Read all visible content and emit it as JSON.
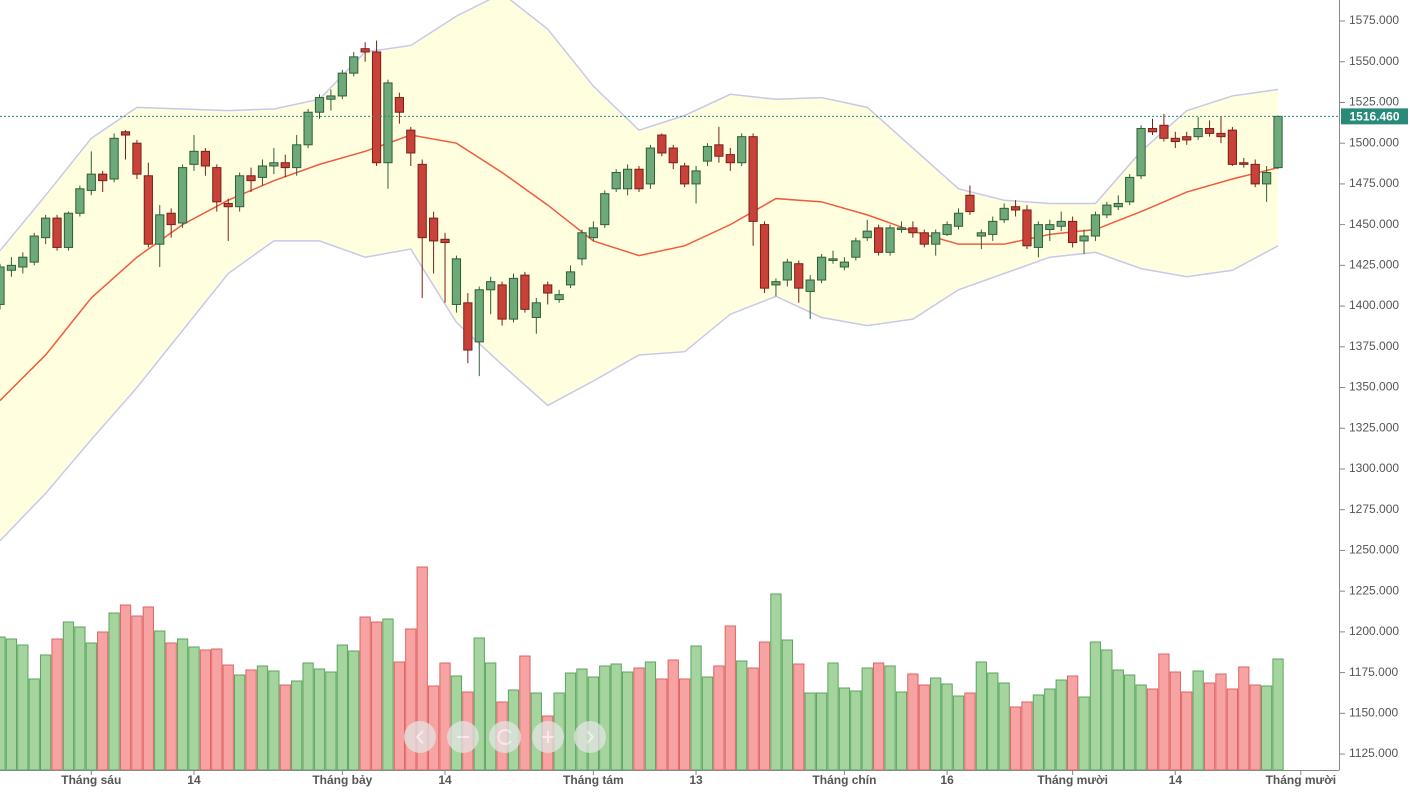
{
  "chart_data": {
    "type": "candlestick",
    "open": [
      1401,
      1422,
      1424,
      1427,
      1442,
      1454,
      1436,
      1457,
      1471,
      1481,
      1478,
      1507,
      1500,
      1480,
      1438,
      1457,
      1451,
      1487,
      1495,
      1485,
      1463,
      1461,
      1480,
      1479,
      1486,
      1488,
      1485,
      1499,
      1519,
      1527,
      1529,
      1543,
      1558,
      1556,
      1488,
      1528,
      1508,
      1487,
      1454,
      1441,
      1401,
      1402,
      1378,
      1410,
      1413,
      1392,
      1419,
      1393,
      1413,
      1404,
      1413,
      1429,
      1442,
      1450,
      1472,
      1472,
      1484,
      1475,
      1505,
      1497,
      1486,
      1475,
      1489,
      1499,
      1493,
      1488,
      1504,
      1450,
      1413,
      1416,
      1426,
      1409,
      1416,
      1428,
      1424,
      1430,
      1442,
      1448,
      1433,
      1447,
      1448,
      1445,
      1438,
      1444,
      1449,
      1468,
      1443,
      1444,
      1453,
      1461,
      1459,
      1436,
      1447,
      1449,
      1452,
      1440,
      1443,
      1456,
      1461,
      1464,
      1480,
      1509,
      1511,
      1503,
      1504,
      1504,
      1509,
      1506,
      1508,
      1488,
      1487,
      1475,
      1485
    ],
    "high": [
      1426,
      1430,
      1433,
      1445,
      1456,
      1456,
      1458,
      1474,
      1495,
      1483,
      1506,
      1508,
      1502,
      1488,
      1462,
      1460,
      1487,
      1505,
      1497,
      1487,
      1466,
      1482,
      1485,
      1490,
      1497,
      1493,
      1505,
      1521,
      1530,
      1533,
      1545,
      1556,
      1562,
      1563,
      1539,
      1531,
      1510,
      1490,
      1458,
      1445,
      1431,
      1408,
      1412,
      1418,
      1415,
      1420,
      1421,
      1405,
      1415,
      1410,
      1425,
      1447,
      1452,
      1471,
      1484,
      1487,
      1486,
      1499,
      1506,
      1499,
      1488,
      1486,
      1500,
      1510,
      1497,
      1506,
      1506,
      1452,
      1417,
      1429,
      1428,
      1419,
      1432,
      1434,
      1430,
      1442,
      1453,
      1450,
      1450,
      1452,
      1452,
      1447,
      1447,
      1452,
      1460,
      1474,
      1447,
      1455,
      1463,
      1465,
      1462,
      1452,
      1453,
      1458,
      1455,
      1447,
      1458,
      1464,
      1468,
      1481,
      1511,
      1515,
      1518,
      1507,
      1507,
      1516,
      1514,
      1516,
      1510,
      1491,
      1490,
      1486,
      1517
    ],
    "low": [
      1398,
      1418,
      1420,
      1425,
      1438,
      1434,
      1434,
      1455,
      1468,
      1470,
      1476,
      1490,
      1478,
      1436,
      1424,
      1442,
      1448,
      1483,
      1480,
      1458,
      1440,
      1458,
      1470,
      1474,
      1481,
      1479,
      1480,
      1497,
      1515,
      1520,
      1527,
      1541,
      1550,
      1486,
      1472,
      1512,
      1486,
      1405,
      1420,
      1402,
      1396,
      1365,
      1357,
      1395,
      1388,
      1390,
      1396,
      1383,
      1401,
      1402,
      1411,
      1425,
      1440,
      1448,
      1470,
      1468,
      1470,
      1472,
      1492,
      1484,
      1473,
      1463,
      1486,
      1488,
      1483,
      1486,
      1437,
      1408,
      1406,
      1412,
      1402,
      1392,
      1414,
      1426,
      1422,
      1428,
      1440,
      1431,
      1431,
      1445,
      1442,
      1436,
      1431,
      1443,
      1447,
      1456,
      1435,
      1440,
      1451,
      1455,
      1435,
      1430,
      1440,
      1446,
      1436,
      1432,
      1440,
      1454,
      1459,
      1462,
      1478,
      1505,
      1501,
      1497,
      1499,
      1502,
      1504,
      1500,
      1486,
      1485,
      1473,
      1464,
      1484
    ],
    "close": [
      1424,
      1425,
      1430,
      1443,
      1454,
      1436,
      1457,
      1472,
      1481,
      1477,
      1503,
      1505,
      1481,
      1438,
      1456,
      1450,
      1485,
      1495,
      1486,
      1464,
      1461,
      1480,
      1477,
      1486,
      1488,
      1485,
      1499,
      1519,
      1528,
      1529,
      1543,
      1553,
      1556,
      1488,
      1537,
      1519,
      1494,
      1442,
      1440,
      1439,
      1429,
      1373,
      1410,
      1415,
      1392,
      1417,
      1398,
      1402,
      1408,
      1407,
      1421,
      1445,
      1448,
      1469,
      1482,
      1484,
      1472,
      1497,
      1494,
      1488,
      1475,
      1483,
      1498,
      1492,
      1488,
      1504,
      1452,
      1411,
      1415,
      1427,
      1411,
      1416,
      1430,
      1429,
      1427,
      1440,
      1446,
      1433,
      1448,
      1448,
      1445,
      1438,
      1445,
      1450,
      1457,
      1458,
      1445,
      1452,
      1460,
      1459,
      1437,
      1450,
      1450,
      1452,
      1439,
      1443,
      1456,
      1462,
      1463,
      1479,
      1509,
      1507,
      1503,
      1501,
      1502,
      1509,
      1506,
      1504,
      1487,
      1487,
      1475,
      1482,
      1516.46
    ],
    "volume": [
      133,
      131,
      125,
      91,
      115,
      131,
      148,
      143,
      127,
      138,
      157,
      165,
      154,
      163,
      139,
      127,
      131,
      123,
      120,
      121,
      105,
      95,
      100,
      104,
      99,
      85,
      89,
      107,
      101,
      98,
      125,
      119,
      153,
      148,
      151,
      108,
      141,
      203,
      84,
      107,
      94,
      78,
      132,
      107,
      68,
      80,
      114,
      77,
      54,
      77,
      97,
      101,
      93,
      104,
      106,
      98,
      102,
      108,
      91,
      110,
      91,
      124,
      93,
      104,
      144,
      109,
      102,
      128,
      176,
      130,
      106,
      77,
      77,
      107,
      82,
      79,
      102,
      107,
      104,
      78,
      96,
      85,
      92,
      86,
      74,
      77,
      108,
      97,
      87,
      63,
      68,
      75,
      81,
      90,
      94,
      73,
      128,
      120,
      100,
      95,
      85,
      81,
      116,
      98,
      78,
      99,
      87,
      96,
      81,
      103,
      85,
      84,
      111
    ],
    "volume_lim": [
      0,
      210
    ],
    "bands": {
      "x": [
        0,
        4,
        8,
        12,
        16,
        20,
        24,
        28,
        32,
        36,
        40,
        44,
        48,
        52,
        56,
        60,
        64,
        68,
        72,
        76,
        80,
        84,
        88,
        92,
        96,
        100,
        104,
        108,
        112
      ],
      "upper": [
        1434,
        1468,
        1503,
        1522,
        1521,
        1520,
        1521,
        1527,
        1556,
        1560,
        1578,
        1592,
        1570,
        1535,
        1508,
        1517,
        1530,
        1527,
        1528,
        1522,
        1497,
        1472,
        1465,
        1463,
        1463,
        1495,
        1520,
        1529,
        1533
      ],
      "middle": [
        1342,
        1370,
        1405,
        1430,
        1450,
        1465,
        1477,
        1487,
        1495,
        1505,
        1500,
        1482,
        1462,
        1440,
        1431,
        1437,
        1450,
        1466,
        1464,
        1456,
        1446,
        1438,
        1438,
        1444,
        1447,
        1458,
        1470,
        1478,
        1485
      ],
      "lower": [
        1256,
        1285,
        1318,
        1350,
        1385,
        1420,
        1440,
        1440,
        1430,
        1435,
        1390,
        1364,
        1339,
        1354,
        1370,
        1372,
        1395,
        1406,
        1393,
        1388,
        1392,
        1410,
        1420,
        1430,
        1433,
        1423,
        1418,
        1422,
        1437
      ]
    },
    "up_color": "#6ea97a",
    "down_color": "#c9423a",
    "band_color": "#c8c8ea",
    "band_fill": "#ffffe0",
    "middle_color": "#f25a3c",
    "xlim": [
      0,
      117.3
    ],
    "xticks": [
      {
        "value": 8,
        "label": "Tháng sáu"
      },
      {
        "value": 17,
        "label": "14"
      },
      {
        "value": 30,
        "label": "Tháng bảy"
      },
      {
        "value": 39,
        "label": "14"
      },
      {
        "value": 52,
        "label": "Tháng tám"
      },
      {
        "value": 61,
        "label": "13"
      },
      {
        "value": 74,
        "label": "Tháng chín"
      },
      {
        "value": 83,
        "label": "16"
      },
      {
        "value": 94,
        "label": "Tháng mười"
      },
      {
        "value": 103,
        "label": "14"
      },
      {
        "value": 114,
        "label": "Tháng mười"
      }
    ],
    "ylim": [
      1115.2,
      1587.9
    ],
    "yticks": [
      {
        "value": 1125,
        "label": "1125.000"
      },
      {
        "value": 1150,
        "label": "1150.000"
      },
      {
        "value": 1175,
        "label": "1175.000"
      },
      {
        "value": 1200,
        "label": "1200.000"
      },
      {
        "value": 1225,
        "label": "1225.000"
      },
      {
        "value": 1250,
        "label": "1250.000"
      },
      {
        "value": 1275,
        "label": "1275.000"
      },
      {
        "value": 1300,
        "label": "1300.000"
      },
      {
        "value": 1325,
        "label": "1325.000"
      },
      {
        "value": 1350,
        "label": "1350.000"
      },
      {
        "value": 1375,
        "label": "1375.000"
      },
      {
        "value": 1400,
        "label": "1400.000"
      },
      {
        "value": 1425,
        "label": "1425.000"
      },
      {
        "value": 1450,
        "label": "1450.000"
      },
      {
        "value": 1475,
        "label": "1475.000"
      },
      {
        "value": 1500,
        "label": "1500.000"
      },
      {
        "value": 1525,
        "label": "1525.000"
      },
      {
        "value": 1550,
        "label": "1550.000"
      },
      {
        "value": 1575,
        "label": "1575.000"
      }
    ],
    "last_price": {
      "value": 1516.46,
      "label": "1516.460"
    }
  }
}
